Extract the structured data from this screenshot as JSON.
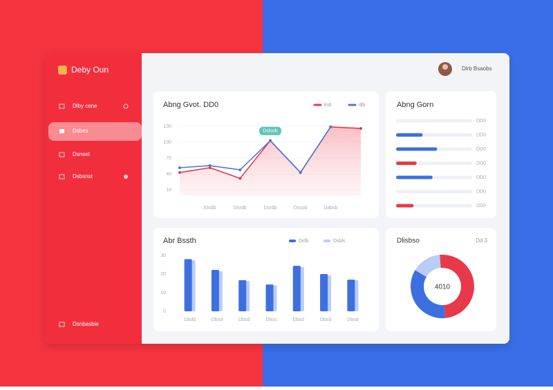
{
  "sidebar": {
    "brand": "Deby Oun",
    "menu": [
      "Dlby cene",
      "Dsbes",
      "Dsnset",
      "Dsbsnst"
    ],
    "footer": "Dsnbasbie"
  },
  "header": {
    "user": "Dlrb Bsaobs"
  },
  "chart_data": [
    {
      "type": "line",
      "title": "Abng Gvot. DD0",
      "categories": [
        null,
        "Elsdb",
        "Dsrdb",
        "Dsrdb",
        "Dssob",
        "Dabsb",
        null
      ],
      "series": [
        {
          "name": "kslt",
          "color": "#e8394a",
          "values": [
            43,
            52,
            32,
            103,
            43,
            129,
            126
          ]
        },
        {
          "name": "dlb",
          "color": "#4a78e0",
          "values": [
            52,
            56,
            48,
            103,
            43,
            129,
            null
          ]
        }
      ],
      "annotation": "Dslsob",
      "ylim": [
        0,
        130
      ],
      "yticks": [
        130,
        100,
        70,
        40,
        10
      ],
      "grid": true
    },
    {
      "type": "hbar",
      "title": "Abng Gorn",
      "categories": [
        "DD0",
        "DD0",
        "DD0",
        "DD0",
        "DD0",
        "DD0",
        "DD0"
      ],
      "values": [
        0,
        35,
        54,
        27,
        48,
        0,
        23
      ],
      "colors": [
        "#e5e7ec",
        "#3d6fe0",
        "#3d6fe0",
        "#e8394a",
        "#3d6fe0",
        "#e5e7ec",
        "#e8394a"
      ],
      "xlim": [
        0,
        100
      ]
    },
    {
      "type": "bar",
      "title": "Abr Bssth",
      "categories": [
        "Dbdd",
        "Dbsd",
        "Dbsd",
        "Dbos",
        "Dbsd",
        "Dbsd",
        "Dbsd"
      ],
      "series": [
        {
          "name": "Dsfb",
          "color": "#3d6fe0",
          "values": [
            28,
            22.2,
            16.7,
            14.4,
            24.4,
            20,
            17
          ]
        },
        {
          "name": "Dsbls",
          "color": "#b9cdf6",
          "values": [
            27.4,
            21.5,
            16.3,
            14,
            23.7,
            19.2,
            16.7
          ]
        }
      ],
      "ylim": [
        0,
        30
      ],
      "yticks": [
        30,
        20,
        10,
        0
      ],
      "grid": false
    },
    {
      "type": "pie",
      "title": "Dlisbso",
      "subtitle": "Dd 3",
      "center_label": "4010",
      "values": [
        50,
        35,
        15
      ],
      "colors": [
        "#e8394a",
        "#3d6fe0",
        "#b9cdf6"
      ]
    }
  ]
}
